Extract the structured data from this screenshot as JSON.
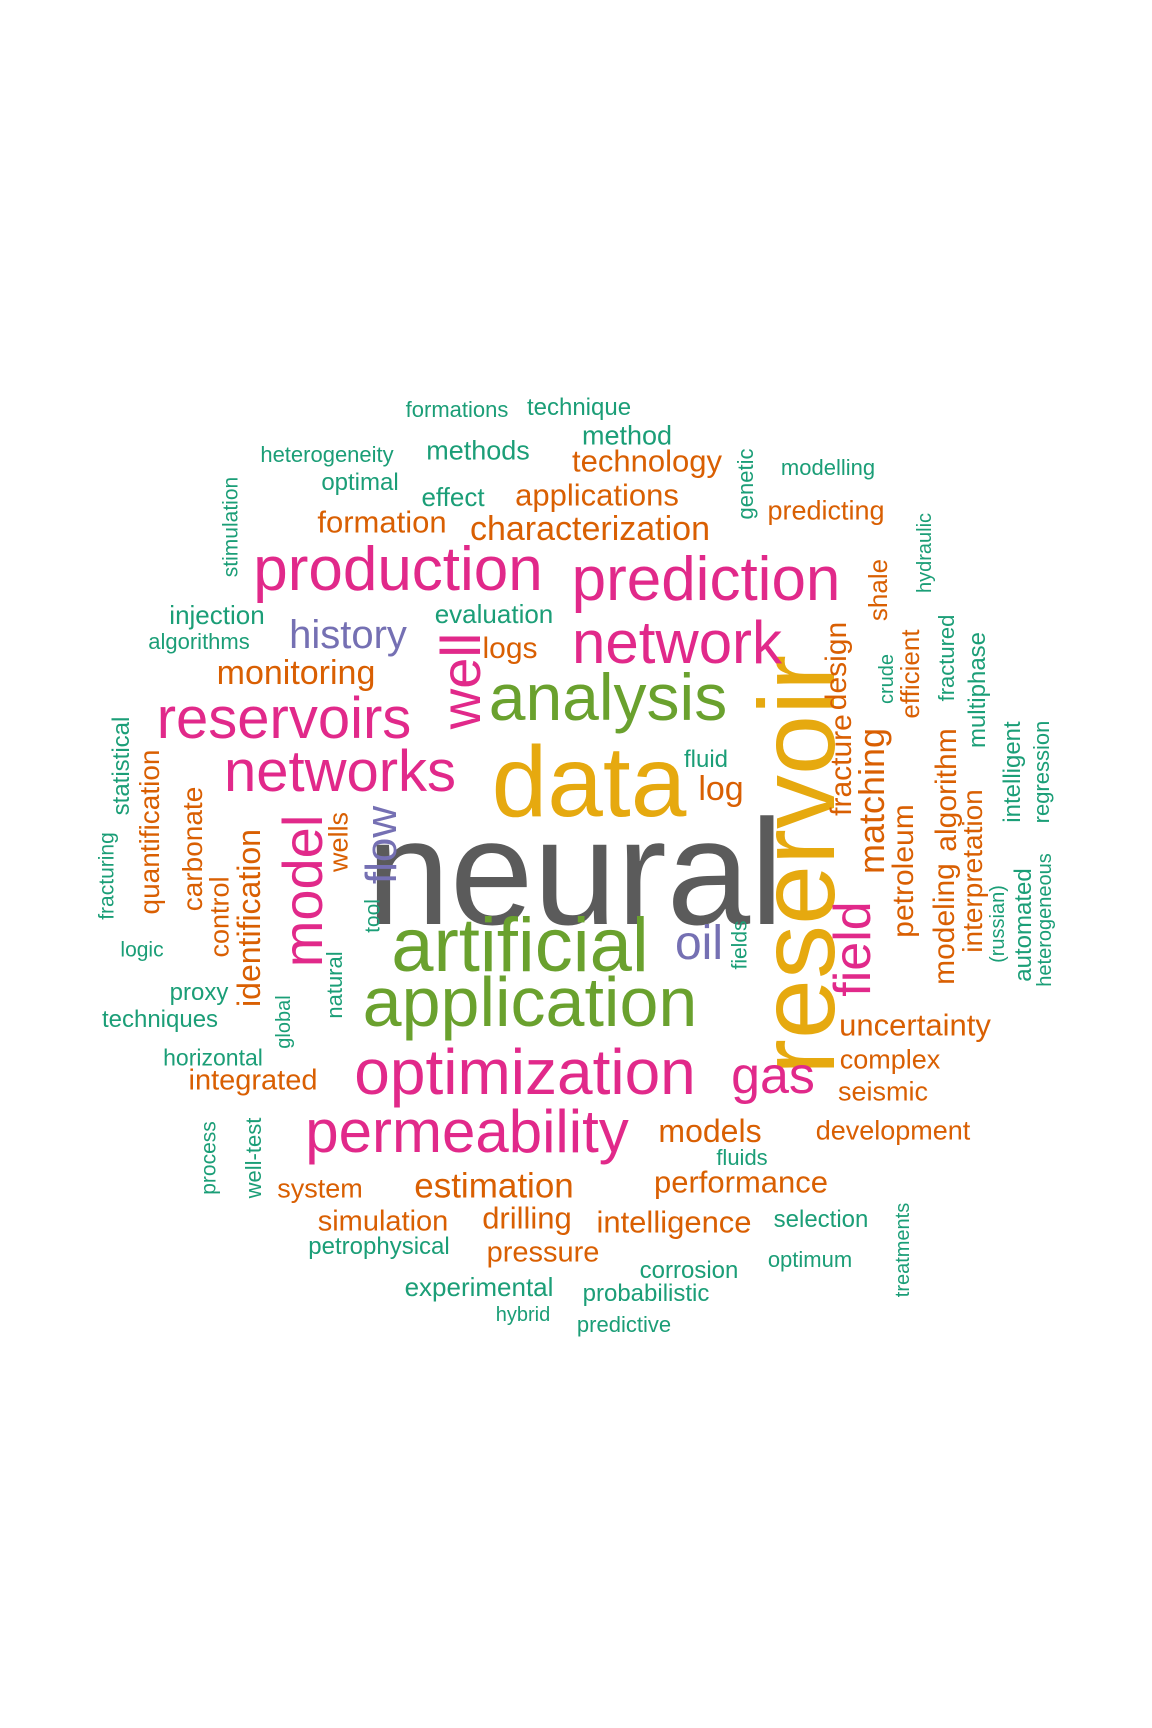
{
  "words": [
    {
      "text": "neural",
      "color": "gray"
    },
    {
      "text": "reservoir",
      "color": "gold"
    },
    {
      "text": "data",
      "color": "gold"
    },
    {
      "text": "artificial",
      "color": "green"
    },
    {
      "text": "application",
      "color": "green"
    },
    {
      "text": "analysis",
      "color": "green"
    },
    {
      "text": "optimization",
      "color": "pink"
    },
    {
      "text": "production",
      "color": "pink"
    },
    {
      "text": "prediction",
      "color": "pink"
    },
    {
      "text": "network",
      "color": "pink"
    },
    {
      "text": "reservoirs",
      "color": "pink"
    },
    {
      "text": "networks",
      "color": "pink"
    },
    {
      "text": "permeability",
      "color": "pink"
    },
    {
      "text": "well",
      "color": "pink"
    },
    {
      "text": "model",
      "color": "pink"
    },
    {
      "text": "field",
      "color": "pink"
    },
    {
      "text": "gas",
      "color": "pink"
    },
    {
      "text": "oil",
      "color": "purple"
    },
    {
      "text": "flow",
      "color": "purple"
    },
    {
      "text": "history",
      "color": "purple"
    },
    {
      "text": "monitoring",
      "color": "orange"
    },
    {
      "text": "characterization",
      "color": "orange"
    },
    {
      "text": "applications",
      "color": "orange"
    },
    {
      "text": "technology",
      "color": "orange"
    },
    {
      "text": "formation",
      "color": "orange"
    },
    {
      "text": "predicting",
      "color": "orange"
    },
    {
      "text": "logs",
      "color": "orange"
    },
    {
      "text": "log",
      "color": "orange"
    },
    {
      "text": "design",
      "color": "orange"
    },
    {
      "text": "shale",
      "color": "orange"
    },
    {
      "text": "efficient",
      "color": "orange"
    },
    {
      "text": "fracture",
      "color": "orange"
    },
    {
      "text": "matching",
      "color": "orange"
    },
    {
      "text": "petroleum",
      "color": "orange"
    },
    {
      "text": "modeling",
      "color": "orange"
    },
    {
      "text": "algorithm",
      "color": "orange"
    },
    {
      "text": "interpretation",
      "color": "orange"
    },
    {
      "text": "uncertainty",
      "color": "orange"
    },
    {
      "text": "complex",
      "color": "orange"
    },
    {
      "text": "seismic",
      "color": "orange"
    },
    {
      "text": "development",
      "color": "orange"
    },
    {
      "text": "models",
      "color": "orange"
    },
    {
      "text": "performance",
      "color": "orange"
    },
    {
      "text": "estimation",
      "color": "orange"
    },
    {
      "text": "drilling",
      "color": "orange"
    },
    {
      "text": "intelligence",
      "color": "orange"
    },
    {
      "text": "simulation",
      "color": "orange"
    },
    {
      "text": "pressure",
      "color": "orange"
    },
    {
      "text": "system",
      "color": "orange"
    },
    {
      "text": "integrated",
      "color": "orange"
    },
    {
      "text": "identification",
      "color": "orange"
    },
    {
      "text": "quantification",
      "color": "orange"
    },
    {
      "text": "carbonate",
      "color": "orange"
    },
    {
      "text": "control",
      "color": "orange"
    },
    {
      "text": "wells",
      "color": "orange"
    },
    {
      "text": "formations",
      "color": "teal"
    },
    {
      "text": "technique",
      "color": "teal"
    },
    {
      "text": "method",
      "color": "teal"
    },
    {
      "text": "heterogeneity",
      "color": "teal"
    },
    {
      "text": "methods",
      "color": "teal"
    },
    {
      "text": "optimal",
      "color": "teal"
    },
    {
      "text": "effect",
      "color": "teal"
    },
    {
      "text": "genetic",
      "color": "teal"
    },
    {
      "text": "modelling",
      "color": "teal"
    },
    {
      "text": "stimulation",
      "color": "teal"
    },
    {
      "text": "hydraulic",
      "color": "teal"
    },
    {
      "text": "injection",
      "color": "teal"
    },
    {
      "text": "evaluation",
      "color": "teal"
    },
    {
      "text": "algorithms",
      "color": "teal"
    },
    {
      "text": "crude",
      "color": "teal"
    },
    {
      "text": "fractured",
      "color": "teal"
    },
    {
      "text": "multiphase",
      "color": "teal"
    },
    {
      "text": "statistical",
      "color": "teal"
    },
    {
      "text": "fluid",
      "color": "teal"
    },
    {
      "text": "intelligent",
      "color": "teal"
    },
    {
      "text": "regression",
      "color": "teal"
    },
    {
      "text": "fracturing",
      "color": "teal"
    },
    {
      "text": "logic",
      "color": "teal"
    },
    {
      "text": "tool",
      "color": "teal"
    },
    {
      "text": "fields",
      "color": "teal"
    },
    {
      "text": "(russian)",
      "color": "teal"
    },
    {
      "text": "automated",
      "color": "teal"
    },
    {
      "text": "heterogeneous",
      "color": "teal"
    },
    {
      "text": "proxy",
      "color": "teal"
    },
    {
      "text": "natural",
      "color": "teal"
    },
    {
      "text": "techniques",
      "color": "teal"
    },
    {
      "text": "global",
      "color": "teal"
    },
    {
      "text": "horizontal",
      "color": "teal"
    },
    {
      "text": "process",
      "color": "teal"
    },
    {
      "text": "well-test",
      "color": "teal"
    },
    {
      "text": "fluids",
      "color": "teal"
    },
    {
      "text": "selection",
      "color": "teal"
    },
    {
      "text": "petrophysical",
      "color": "teal"
    },
    {
      "text": "optimum",
      "color": "teal"
    },
    {
      "text": "treatments",
      "color": "teal"
    },
    {
      "text": "corrosion",
      "color": "teal"
    },
    {
      "text": "experimental",
      "color": "teal"
    },
    {
      "text": "probabilistic",
      "color": "teal"
    },
    {
      "text": "hybrid",
      "color": "teal"
    },
    {
      "text": "predictive",
      "color": "teal"
    }
  ],
  "colors": {
    "gray": "#5b5b5b",
    "gold": "#e6a90f",
    "green": "#6aa12e",
    "pink": "#e1298a",
    "purple": "#7570b3",
    "orange": "#d95f02",
    "teal": "#1b9e77"
  }
}
